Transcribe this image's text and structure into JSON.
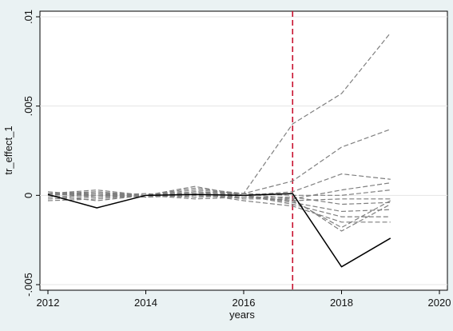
{
  "chart_data": {
    "type": "line",
    "title": "",
    "xlabel": "years",
    "ylabel": "tr_effect_1",
    "xlim": [
      2012,
      2020
    ],
    "ylim": [
      -0.005,
      0.01
    ],
    "xticks": [
      {
        "value": 2012,
        "label": "2012"
      },
      {
        "value": 2014,
        "label": "2014"
      },
      {
        "value": 2016,
        "label": "2016"
      },
      {
        "value": 2018,
        "label": "2018"
      },
      {
        "value": 2020,
        "label": "2020"
      }
    ],
    "yticks": [
      {
        "value": -0.005,
        "label": "-.005"
      },
      {
        "value": 0,
        "label": "0"
      },
      {
        "value": 0.005,
        "label": ".005"
      },
      {
        "value": 0.01,
        "label": ".01"
      }
    ],
    "grid": "horizontal",
    "legend": "none",
    "reference_line": {
      "x": 2017,
      "style": "dashed",
      "color": "#c8102e"
    },
    "colors": {
      "page_background": "#eaf2f3",
      "plot_background": "#ffffff",
      "main_series": "#000000",
      "placebo_series": "#7f7f7f",
      "grid": "#e4e4e4",
      "axis": "#000000"
    },
    "x": [
      2012,
      2013,
      2014,
      2015,
      2016,
      2017,
      2018,
      2019
    ],
    "series": [
      {
        "style": "solid",
        "values": [
          5e-05,
          -0.0007,
          0,
          5e-05,
          0,
          0.0001,
          -0.004,
          -0.0024
        ]
      },
      {
        "style": "dashed",
        "values": [
          0.0001,
          0.0002,
          0,
          0.0003,
          0.0001,
          0.004,
          0.0057,
          0.0091
        ]
      },
      {
        "style": "dashed",
        "values": [
          0.0001,
          -0.0001,
          0,
          0.0004,
          0.0001,
          0.0008,
          0.0027,
          0.0037
        ]
      },
      {
        "style": "dashed",
        "values": [
          0.0001,
          0.0003,
          0,
          0.0005,
          0,
          0.0002,
          0.0012,
          0.0009
        ]
      },
      {
        "style": "dashed",
        "values": [
          -0.0002,
          -0.0001,
          0,
          0.0001,
          -0.0002,
          -0.0002,
          0.0003,
          0.0007
        ]
      },
      {
        "style": "dashed",
        "values": [
          0,
          0.0002,
          -0.0001,
          0.0002,
          0.0001,
          0,
          0,
          0.0003
        ]
      },
      {
        "style": "dashed",
        "values": [
          0.0001,
          0,
          0.0001,
          -0.0001,
          0,
          -0.0003,
          -0.0002,
          -0.0002
        ]
      },
      {
        "style": "dashed",
        "values": [
          -0.0001,
          0,
          -0.0001,
          0,
          -0.0001,
          -0.0001,
          -0.0005,
          -0.0004
        ]
      },
      {
        "style": "dashed",
        "values": [
          0,
          0.0001,
          0,
          0.0002,
          0,
          -0.0004,
          -0.0009,
          -0.0008
        ]
      },
      {
        "style": "dashed",
        "values": [
          0.0002,
          0,
          0,
          -0.0001,
          0,
          -0.0005,
          -0.0012,
          -0.0012
        ]
      },
      {
        "style": "dashed",
        "values": [
          -0.0003,
          -0.0002,
          0,
          0.0001,
          -0.0003,
          -0.0006,
          -0.0015,
          -0.0015
        ]
      },
      {
        "style": "dashed",
        "values": [
          0,
          -0.0003,
          0,
          -0.0002,
          -0.0001,
          -0.0003,
          -0.0018,
          -0.0003
        ]
      },
      {
        "style": "dashed",
        "values": [
          0.0001,
          0.0001,
          -0.0001,
          0.0001,
          0.0001,
          -0.0002,
          -0.002,
          -0.0005
        ]
      }
    ]
  }
}
